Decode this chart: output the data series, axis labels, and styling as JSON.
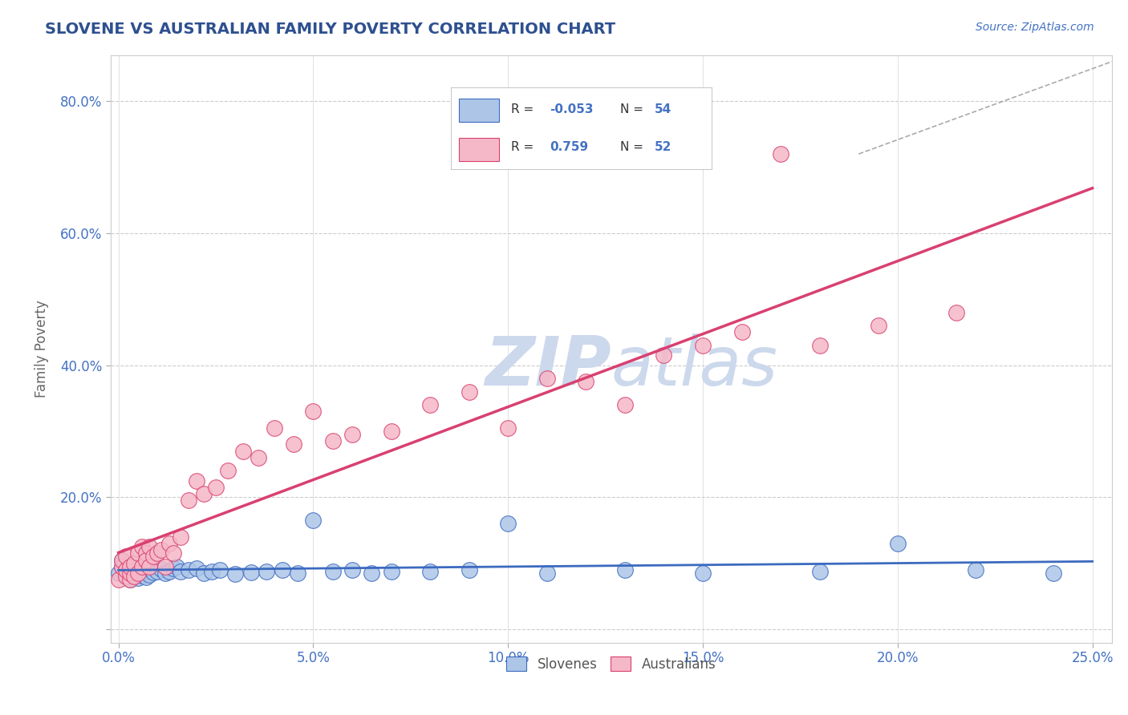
{
  "title": "SLOVENE VS AUSTRALIAN FAMILY POVERTY CORRELATION CHART",
  "source_text": "Source: ZipAtlas.com",
  "ylabel": "Family Poverty",
  "xlim": [
    -0.002,
    0.255
  ],
  "ylim": [
    -0.02,
    0.87
  ],
  "xticks": [
    0.0,
    0.05,
    0.1,
    0.15,
    0.2,
    0.25
  ],
  "yticks": [
    0.0,
    0.2,
    0.4,
    0.6,
    0.8
  ],
  "ytick_labels": [
    "",
    "20.0%",
    "40.0%",
    "60.0%",
    "80.0%"
  ],
  "xtick_labels": [
    "0.0%",
    "5.0%",
    "10.0%",
    "15.0%",
    "20.0%",
    "25.0%"
  ],
  "slovene_R": -0.053,
  "slovene_N": 54,
  "australian_R": 0.759,
  "australian_N": 52,
  "slovene_color": "#adc6e8",
  "australian_color": "#f5b8c8",
  "trend_slovene_color": "#3c6abf",
  "trend_australian_color": "#d94070",
  "background_color": "#ffffff",
  "grid_color": "#cccccc",
  "title_color": "#2e5090",
  "axis_label_color": "#4472c4",
  "watermark_color": "#ccd8ec",
  "dashed_line_color": "#aaaaaa",
  "slovene_x": [
    0.0,
    0.001,
    0.001,
    0.002,
    0.002,
    0.002,
    0.003,
    0.003,
    0.003,
    0.004,
    0.004,
    0.004,
    0.005,
    0.005,
    0.005,
    0.006,
    0.006,
    0.007,
    0.007,
    0.008,
    0.008,
    0.009,
    0.01,
    0.011,
    0.012,
    0.013,
    0.014,
    0.015,
    0.016,
    0.018,
    0.02,
    0.022,
    0.024,
    0.026,
    0.03,
    0.034,
    0.038,
    0.042,
    0.046,
    0.05,
    0.055,
    0.06,
    0.065,
    0.07,
    0.08,
    0.09,
    0.1,
    0.11,
    0.13,
    0.15,
    0.18,
    0.2,
    0.22,
    0.24
  ],
  "slovene_y": [
    0.085,
    0.095,
    0.105,
    0.08,
    0.09,
    0.1,
    0.075,
    0.085,
    0.095,
    0.08,
    0.09,
    0.1,
    0.078,
    0.088,
    0.098,
    0.082,
    0.092,
    0.079,
    0.089,
    0.083,
    0.093,
    0.086,
    0.088,
    0.091,
    0.085,
    0.087,
    0.092,
    0.095,
    0.088,
    0.09,
    0.092,
    0.085,
    0.088,
    0.09,
    0.084,
    0.086,
    0.088,
    0.09,
    0.085,
    0.165,
    0.088,
    0.09,
    0.085,
    0.088,
    0.088,
    0.09,
    0.16,
    0.085,
    0.09,
    0.085,
    0.088,
    0.13,
    0.09,
    0.085
  ],
  "australian_x": [
    0.0,
    0.001,
    0.001,
    0.002,
    0.002,
    0.002,
    0.003,
    0.003,
    0.003,
    0.004,
    0.004,
    0.005,
    0.005,
    0.006,
    0.006,
    0.007,
    0.007,
    0.008,
    0.008,
    0.009,
    0.01,
    0.011,
    0.012,
    0.013,
    0.014,
    0.016,
    0.018,
    0.02,
    0.022,
    0.025,
    0.028,
    0.032,
    0.036,
    0.04,
    0.045,
    0.05,
    0.055,
    0.06,
    0.07,
    0.08,
    0.09,
    0.1,
    0.11,
    0.12,
    0.13,
    0.14,
    0.15,
    0.16,
    0.17,
    0.18,
    0.195,
    0.215
  ],
  "australian_y": [
    0.075,
    0.095,
    0.105,
    0.08,
    0.09,
    0.11,
    0.075,
    0.085,
    0.095,
    0.08,
    0.1,
    0.115,
    0.085,
    0.125,
    0.095,
    0.115,
    0.105,
    0.095,
    0.125,
    0.11,
    0.115,
    0.12,
    0.095,
    0.13,
    0.115,
    0.14,
    0.195,
    0.225,
    0.205,
    0.215,
    0.24,
    0.27,
    0.26,
    0.305,
    0.28,
    0.33,
    0.285,
    0.295,
    0.3,
    0.34,
    0.36,
    0.305,
    0.38,
    0.375,
    0.34,
    0.415,
    0.43,
    0.45,
    0.72,
    0.43,
    0.46,
    0.48
  ]
}
